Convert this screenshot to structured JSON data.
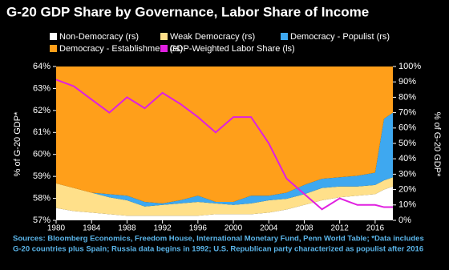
{
  "chart_data": {
    "type": "area",
    "title": "G-20 GDP Share by Governance, Labor Share of Income",
    "ylabel": "% of G-20 GDP*",
    "y2label": "% of G-20 GDP*",
    "footnote": [
      "Sources: Bloomberg Economics, Freedom House, International Monetary Fund, Penn World Table; *Data includes",
      "G-20 countries plus Spain; Russia data begins in 1992; U.S. Republican party characterized as populist after 2016"
    ],
    "x": [
      1980,
      1982,
      1984,
      1986,
      1988,
      1990,
      1992,
      1994,
      1996,
      1998,
      2000,
      2002,
      2004,
      2006,
      2008,
      2010,
      2012,
      2014,
      2016,
      2017,
      2018
    ],
    "xlim": [
      1980,
      2018
    ],
    "xticks": [
      1980,
      1984,
      1988,
      1992,
      1996,
      2000,
      2004,
      2008,
      2012,
      2016
    ],
    "ylim": [
      57,
      64
    ],
    "yticks": [
      {
        "value": 57,
        "label": "57%"
      },
      {
        "value": 58,
        "label": "58%"
      },
      {
        "value": 59,
        "label": "59%"
      },
      {
        "value": 60,
        "label": "60%"
      },
      {
        "value": 61,
        "label": "61%"
      },
      {
        "value": 62,
        "label": "62%"
      },
      {
        "value": 63,
        "label": "63%"
      },
      {
        "value": 64,
        "label": "64%"
      }
    ],
    "y2lim": [
      0,
      100
    ],
    "y2ticks": [
      {
        "value": 0,
        "label": "0%"
      },
      {
        "value": 10,
        "label": "10%"
      },
      {
        "value": 20,
        "label": "20%"
      },
      {
        "value": 30,
        "label": "30%"
      },
      {
        "value": 40,
        "label": "40%"
      },
      {
        "value": 50,
        "label": "50%"
      },
      {
        "value": 60,
        "label": "60%"
      },
      {
        "value": 70,
        "label": "70%"
      },
      {
        "value": 80,
        "label": "80%"
      },
      {
        "value": 90,
        "label": "90%"
      },
      {
        "value": 100,
        "label": "100%"
      }
    ],
    "series": [
      {
        "name": "Non-Democracy (rs)",
        "color": "#ffffff",
        "axis": "y2",
        "values": [
          8,
          6,
          5,
          4,
          3,
          3,
          3,
          3,
          3,
          4,
          4,
          4,
          5,
          7,
          10,
          13,
          15,
          16,
          17,
          20,
          22
        ]
      },
      {
        "name": "Weak Democracy (rs)",
        "color": "#ffe08a",
        "axis": "y2",
        "values": [
          16,
          15,
          13,
          11,
          10,
          6,
          7,
          8,
          9,
          7,
          6,
          7,
          8,
          7,
          7,
          8,
          7,
          6,
          6,
          6,
          6
        ]
      },
      {
        "name": "Democracy - Populist (rs)",
        "color": "#3ea8f0",
        "axis": "y2",
        "values": [
          0,
          0,
          0,
          2,
          3,
          3,
          1,
          2,
          4,
          1,
          2,
          5,
          3,
          4,
          6,
          6,
          6,
          7,
          8,
          40,
          42
        ]
      },
      {
        "name": "Democracy - Establishment (rs)",
        "color": "#ff9f1a",
        "axis": "y2",
        "values": [
          76,
          79,
          82,
          83,
          84,
          88,
          89,
          87,
          84,
          88,
          88,
          84,
          84,
          82,
          77,
          73,
          72,
          71,
          69,
          34,
          30
        ]
      },
      {
        "name": "GDP-Weighted Labor Share (ls)",
        "color": "#e020e0",
        "type": "line",
        "values": [
          63.4,
          63.1,
          62.5,
          61.9,
          62.6,
          62.1,
          62.8,
          62.3,
          61.7,
          61.0,
          61.7,
          61.7,
          60.5,
          58.9,
          58.2,
          57.5,
          58.0,
          57.7,
          57.7,
          57.6,
          57.6
        ]
      }
    ]
  }
}
